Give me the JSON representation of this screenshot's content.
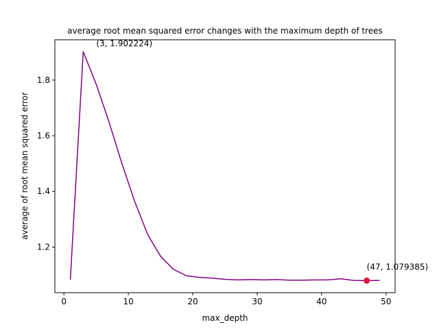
{
  "chart_data": {
    "type": "line",
    "title": "average root mean squared error changes with the maximum depth of trees",
    "xlabel": "max_depth",
    "ylabel": "average of root mean squared error",
    "xlim": [
      -1.4,
      51.4
    ],
    "ylim": [
      1.036,
      1.945
    ],
    "xticks": [
      0,
      10,
      20,
      30,
      40,
      50
    ],
    "yticks": [
      1.2,
      1.4,
      1.6,
      1.8
    ],
    "xtick_labels": [
      "0",
      "10",
      "20",
      "30",
      "40",
      "50"
    ],
    "ytick_labels": [
      "1.2",
      "1.4",
      "1.6",
      "1.8"
    ],
    "grid": false,
    "series": [
      {
        "color": "#800080",
        "x": [
          1,
          3,
          5,
          7,
          9,
          11,
          13,
          15,
          17,
          19,
          21,
          23,
          25,
          27,
          29,
          31,
          33,
          35,
          37,
          39,
          41,
          43,
          45,
          47,
          49
        ],
        "y": [
          1.083,
          1.902224,
          1.786,
          1.65,
          1.5,
          1.363,
          1.245,
          1.167,
          1.12,
          1.097,
          1.091,
          1.088,
          1.084,
          1.082,
          1.083,
          1.082,
          1.083,
          1.081,
          1.081,
          1.082,
          1.082,
          1.086,
          1.08,
          1.079385,
          1.08
        ]
      }
    ],
    "highlight_point": {
      "x": 47,
      "y": 1.079385,
      "color": "#dc143c"
    },
    "annotations": [
      {
        "text": "(3, 1.902224)",
        "x": 3,
        "y": 1.902224
      },
      {
        "text": "(47, 1.079385)",
        "x": 47,
        "y": 1.079385
      }
    ]
  }
}
